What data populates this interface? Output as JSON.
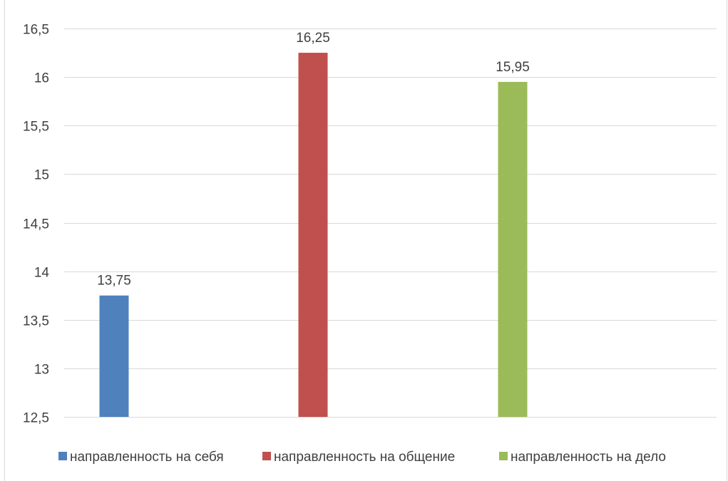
{
  "chart_data": {
    "type": "bar",
    "categories": [
      ""
    ],
    "series": [
      {
        "name": "направленность на себя",
        "values": [
          13.75
        ],
        "color": "#4F81BD"
      },
      {
        "name": "направленность на общение",
        "values": [
          16.25
        ],
        "color": "#C0504D"
      },
      {
        "name": "направленность на дело",
        "values": [
          15.95
        ],
        "color": "#9BBB59"
      }
    ],
    "data_labels": [
      "13,75",
      "16,25",
      "15,95"
    ],
    "ylim": [
      12.5,
      16.5
    ],
    "y_ticks": [
      12.5,
      13,
      13.5,
      14,
      14.5,
      15,
      15.5,
      16,
      16.5
    ],
    "y_tick_labels": [
      "12,5",
      "13",
      "13,5",
      "14",
      "14,5",
      "15",
      "15,5",
      "16",
      "16,5"
    ],
    "grid": true,
    "legend_position": "bottom",
    "gridline_color": "#d9d9d9",
    "title": "",
    "xlabel": "",
    "ylabel": ""
  }
}
